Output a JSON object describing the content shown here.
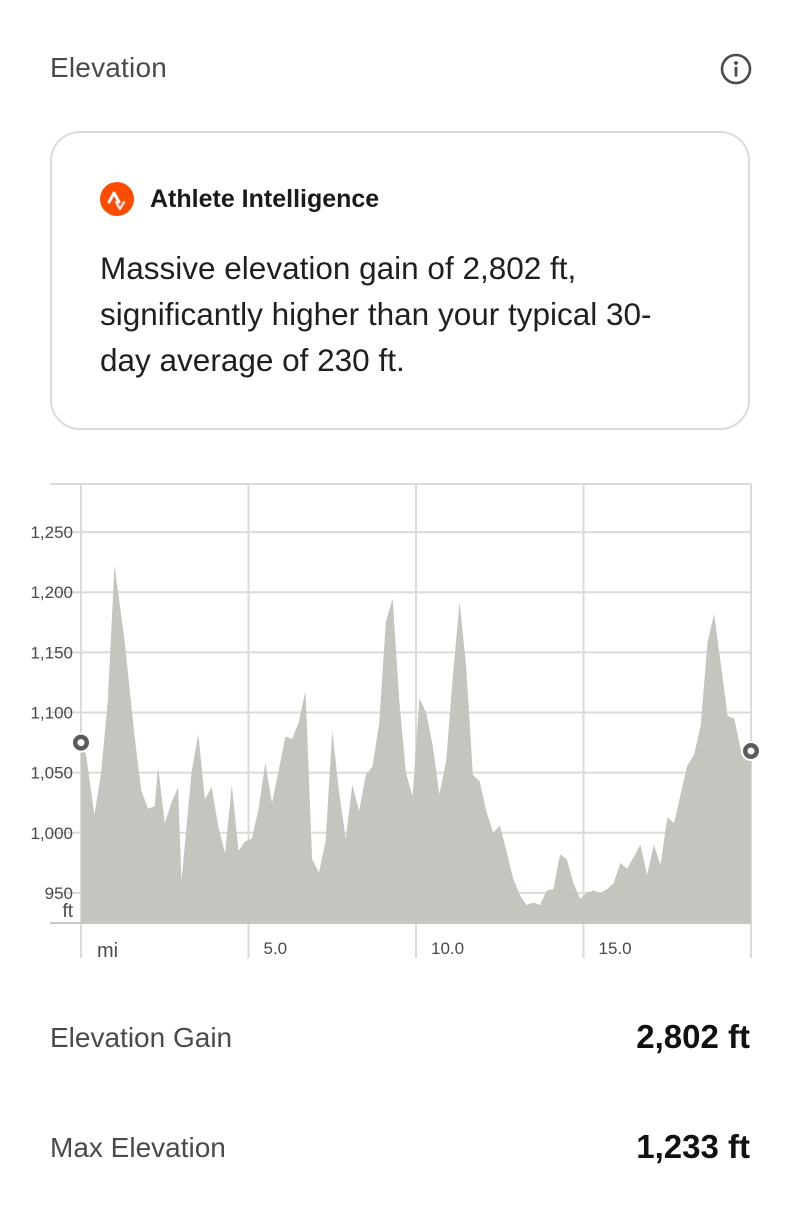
{
  "section": {
    "title": "Elevation",
    "info_icon": "info-circle-icon"
  },
  "athlete_intelligence": {
    "logo_icon": "strava-logo-icon",
    "label": "Athlete Intelligence",
    "message": "Massive elevation gain of 2,802 ft, significantly higher than your typical 30-day average of 230 ft.",
    "accent_color": "#fc4c02"
  },
  "chart_data": {
    "type": "area",
    "x_unit": "mi",
    "y_unit": "ft",
    "xlim": [
      0,
      20
    ],
    "ylim": [
      925,
      1290
    ],
    "x_ticks": [
      5,
      10,
      15
    ],
    "x_tick_labels": [
      "5.0",
      "10.0",
      "15.0"
    ],
    "y_ticks": [
      950,
      1000,
      1050,
      1100,
      1150,
      1200,
      1250
    ],
    "y_tick_labels": [
      "950",
      "1,000",
      "1,050",
      "1,100",
      "1,150",
      "1,200",
      "1,250"
    ],
    "grid": true,
    "fill_color": "#c5c4bf",
    "x": [
      0,
      0.15,
      0.4,
      0.6,
      0.8,
      1.0,
      1.3,
      1.6,
      1.8,
      2.0,
      2.2,
      2.3,
      2.5,
      2.7,
      2.9,
      3.0,
      3.3,
      3.5,
      3.7,
      3.9,
      4.1,
      4.3,
      4.5,
      4.7,
      4.9,
      5.1,
      5.3,
      5.5,
      5.7,
      5.9,
      6.1,
      6.3,
      6.5,
      6.7,
      6.9,
      7.1,
      7.3,
      7.5,
      7.7,
      7.9,
      8.1,
      8.3,
      8.5,
      8.7,
      8.9,
      9.1,
      9.3,
      9.5,
      9.7,
      9.9,
      10.1,
      10.3,
      10.5,
      10.7,
      10.9,
      11.1,
      11.3,
      11.5,
      11.7,
      11.9,
      12.1,
      12.3,
      12.5,
      12.7,
      12.9,
      13.1,
      13.3,
      13.5,
      13.7,
      13.9,
      14.1,
      14.3,
      14.5,
      14.7,
      14.9,
      15.1,
      15.3,
      15.5,
      15.7,
      15.9,
      16.1,
      16.3,
      16.5,
      16.7,
      16.9,
      17.1,
      17.3,
      17.5,
      17.7,
      17.9,
      18.1,
      18.3,
      18.5,
      18.7,
      18.9,
      19.1,
      19.3,
      19.5,
      19.7,
      19.9,
      20.0
    ],
    "y": [
      1075,
      1065,
      1015,
      1050,
      1110,
      1222,
      1160,
      1080,
      1035,
      1020,
      1022,
      1055,
      1008,
      1025,
      1038,
      960,
      1050,
      1082,
      1028,
      1038,
      1005,
      983,
      1040,
      985,
      993,
      995,
      1020,
      1058,
      1025,
      1052,
      1080,
      1078,
      1092,
      1118,
      978,
      967,
      992,
      1085,
      1035,
      995,
      1040,
      1018,
      1048,
      1055,
      1090,
      1175,
      1195,
      1110,
      1050,
      1030,
      1112,
      1100,
      1072,
      1032,
      1060,
      1130,
      1192,
      1138,
      1048,
      1043,
      1018,
      1000,
      1006,
      985,
      962,
      948,
      940,
      942,
      940,
      952,
      953,
      982,
      978,
      958,
      945,
      950,
      952,
      950,
      953,
      958,
      975,
      970,
      980,
      990,
      965,
      990,
      973,
      1013,
      1008,
      1032,
      1056,
      1065,
      1090,
      1158,
      1182,
      1140,
      1097,
      1095,
      1068,
      1065,
      1068
    ]
  },
  "stats": [
    {
      "label": "Elevation Gain",
      "value": "2,802 ft"
    },
    {
      "label": "Max Elevation",
      "value": "1,233 ft"
    }
  ]
}
